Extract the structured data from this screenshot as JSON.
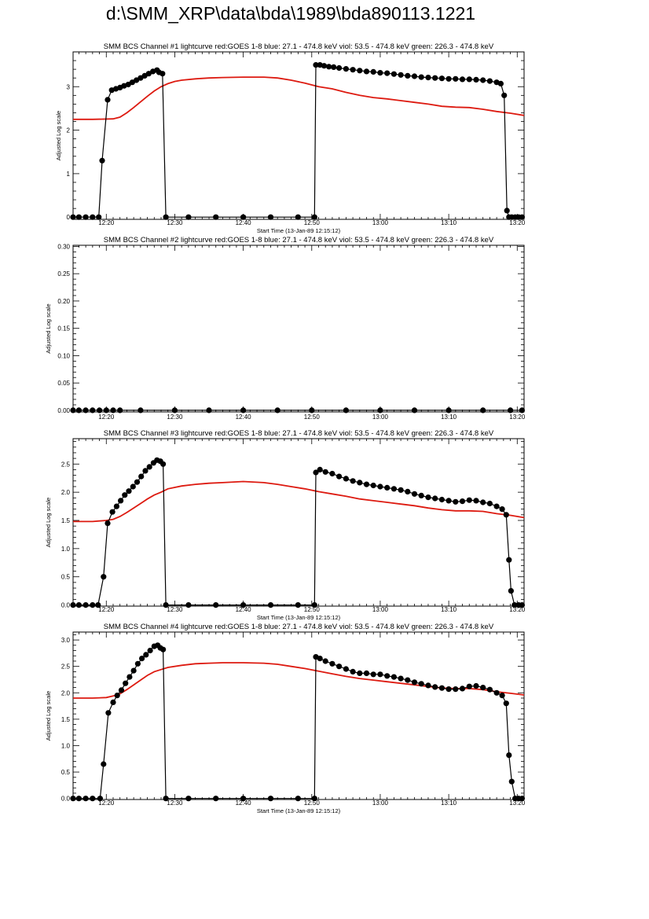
{
  "page_title": "d:\\SMM_XRP\\data\\bda\\1989\\bda890113.1221",
  "colors": {
    "goes": "#dd1a10",
    "bcs": "#000000",
    "axes": "#000000",
    "background": "#ffffff"
  },
  "chart_data": [
    {
      "type": "line",
      "title": "SMM BCS Channel #1 lightcurve  red:GOES 1-8  blue: 27.1 - 474.8 keV  viol: 53.5 - 474.8 keV  green: 226.3 - 474.8 keV",
      "xlabel": "Start Time (13-Jan-89 12:15:12)",
      "ylabel": "Adjusted Log scale",
      "x_ticks": [
        {
          "x": 5,
          "label": "12:20"
        },
        {
          "x": 15,
          "label": "12:30"
        },
        {
          "x": 25,
          "label": "12:40"
        },
        {
          "x": 35,
          "label": "12:50"
        },
        {
          "x": 45,
          "label": "13:00"
        },
        {
          "x": 55,
          "label": "13:10"
        },
        {
          "x": 65,
          "label": "13:20"
        }
      ],
      "y_ticks": [
        {
          "v": 0,
          "label": "0"
        },
        {
          "v": 1,
          "label": "1"
        },
        {
          "v": 2,
          "label": "2"
        },
        {
          "v": 3,
          "label": "3"
        }
      ],
      "xlim": [
        0.15,
        66.0
      ],
      "ylim": [
        -0.05,
        3.8
      ],
      "series": [
        {
          "name": "GOES 1-8",
          "color": "#dd1a10",
          "marker": "none",
          "x": [
            0.15,
            3,
            6,
            7,
            8,
            9,
            10,
            11,
            12,
            13,
            14,
            15,
            16,
            18,
            20,
            22,
            25,
            28,
            30,
            32,
            34,
            36,
            38,
            40,
            42,
            44,
            46,
            48,
            50,
            52,
            54,
            56,
            58,
            60,
            62,
            64,
            66
          ],
          "y": [
            2.25,
            2.25,
            2.26,
            2.3,
            2.4,
            2.52,
            2.65,
            2.78,
            2.9,
            3.0,
            3.07,
            3.12,
            3.15,
            3.18,
            3.2,
            3.21,
            3.22,
            3.22,
            3.2,
            3.15,
            3.08,
            3.0,
            2.95,
            2.87,
            2.8,
            2.75,
            2.72,
            2.68,
            2.64,
            2.6,
            2.55,
            2.53,
            2.52,
            2.48,
            2.43,
            2.39,
            2.34
          ]
        },
        {
          "name": "BCS",
          "color": "#000000",
          "marker": "circle",
          "x": [
            0.15,
            1,
            2,
            3,
            3.9,
            4.4,
            5.2,
            5.8,
            6.4,
            7.0,
            7.6,
            8.2,
            8.8,
            9.4,
            10.0,
            10.6,
            11.2,
            11.8,
            12.4,
            12.7,
            13.2,
            13.7,
            17,
            21,
            25,
            29,
            33,
            35.4,
            35.6,
            36.2,
            36.8,
            37.5,
            38.2,
            39,
            40,
            41,
            42,
            43,
            44,
            45,
            46,
            47,
            48,
            49,
            50,
            51,
            52,
            53,
            54,
            55,
            56,
            57,
            58,
            59,
            60,
            61,
            62,
            62.6,
            63.1,
            63.5,
            63.8,
            64.2,
            64.7,
            65.2,
            65.7
          ],
          "y": [
            0,
            0,
            0,
            0,
            0,
            1.3,
            2.7,
            2.92,
            2.95,
            2.98,
            3.02,
            3.05,
            3.1,
            3.15,
            3.2,
            3.25,
            3.3,
            3.35,
            3.38,
            3.33,
            3.3,
            0,
            0,
            0,
            0,
            0,
            0,
            0,
            3.5,
            3.5,
            3.48,
            3.46,
            3.45,
            3.43,
            3.41,
            3.39,
            3.37,
            3.35,
            3.34,
            3.32,
            3.31,
            3.29,
            3.27,
            3.25,
            3.24,
            3.22,
            3.21,
            3.2,
            3.19,
            3.18,
            3.18,
            3.17,
            3.17,
            3.16,
            3.15,
            3.13,
            3.1,
            3.07,
            2.8,
            0.15,
            0,
            0,
            0,
            0,
            0
          ]
        }
      ]
    },
    {
      "type": "line",
      "title": "SMM BCS Channel #2 lightcurve  red:GOES 1-8  blue: 27.1 - 474.8 keV  viol: 53.5 - 474.8 keV  green: 226.3 - 474.8 keV",
      "xlabel": "",
      "ylabel": "Adjusted Log scale",
      "x_ticks": [
        {
          "x": 5,
          "label": "12:20"
        },
        {
          "x": 15,
          "label": "12:30"
        },
        {
          "x": 25,
          "label": "12:40"
        },
        {
          "x": 35,
          "label": "12:50"
        },
        {
          "x": 45,
          "label": "13:00"
        },
        {
          "x": 55,
          "label": "13:10"
        },
        {
          "x": 65,
          "label": "13:20"
        }
      ],
      "y_ticks": [
        {
          "v": 0,
          "label": "0.00"
        },
        {
          "v": 0.05,
          "label": "0.05"
        },
        {
          "v": 0.1,
          "label": "0.10"
        },
        {
          "v": 0.15,
          "label": "0.15"
        },
        {
          "v": 0.2,
          "label": "0.20"
        },
        {
          "v": 0.25,
          "label": "0.25"
        },
        {
          "v": 0.3,
          "label": "0.30"
        }
      ],
      "xlim": [
        0.15,
        66.0
      ],
      "ylim": [
        -0.003,
        0.302
      ],
      "series": [
        {
          "name": "BCS",
          "color": "#000000",
          "marker": "circle",
          "x": [
            0.15,
            1,
            2,
            3,
            4,
            5,
            6,
            7,
            10,
            15,
            20,
            25,
            30,
            35,
            40,
            45,
            50,
            55,
            60,
            64,
            65.7
          ],
          "y": [
            0,
            0,
            0,
            0,
            0,
            0,
            0,
            0,
            0,
            0,
            0,
            0,
            0,
            0,
            0,
            0,
            0,
            0,
            0,
            0,
            0
          ]
        }
      ]
    },
    {
      "type": "line",
      "title": "SMM BCS Channel #3 lightcurve  red:GOES 1-8  blue: 27.1 - 474.8 keV  viol: 53.5 - 474.8 keV  green: 226.3 - 474.8 keV",
      "xlabel": "Start Time (13-Jan-89 12:15:12)",
      "ylabel": "Adjusted Log scale",
      "x_ticks": [
        {
          "x": 5,
          "label": "12:20"
        },
        {
          "x": 15,
          "label": "12:30"
        },
        {
          "x": 25,
          "label": "12:40"
        },
        {
          "x": 35,
          "label": "12:50"
        },
        {
          "x": 45,
          "label": "13:00"
        },
        {
          "x": 55,
          "label": "13:10"
        },
        {
          "x": 65,
          "label": "13:20"
        }
      ],
      "y_ticks": [
        {
          "v": 0,
          "label": "0.0"
        },
        {
          "v": 0.5,
          "label": "0.5"
        },
        {
          "v": 1.0,
          "label": "1.0"
        },
        {
          "v": 1.5,
          "label": "1.5"
        },
        {
          "v": 2.0,
          "label": "2.0"
        },
        {
          "v": 2.5,
          "label": "2.5"
        }
      ],
      "xlim": [
        0.15,
        66.0
      ],
      "ylim": [
        -0.02,
        2.95
      ],
      "series": [
        {
          "name": "GOES 1-8",
          "color": "#dd1a10",
          "marker": "none",
          "x": [
            0.15,
            3,
            5,
            6,
            7,
            8,
            9,
            10,
            11,
            12,
            13,
            14,
            16,
            18,
            20,
            22,
            25,
            28,
            30,
            32,
            34,
            36,
            38,
            40,
            42,
            44,
            46,
            48,
            50,
            52,
            54,
            56,
            58,
            60,
            62,
            64,
            66
          ],
          "y": [
            1.48,
            1.48,
            1.5,
            1.52,
            1.57,
            1.64,
            1.72,
            1.8,
            1.88,
            1.95,
            2.0,
            2.06,
            2.11,
            2.14,
            2.16,
            2.17,
            2.19,
            2.17,
            2.14,
            2.1,
            2.06,
            2.01,
            1.97,
            1.93,
            1.88,
            1.85,
            1.82,
            1.79,
            1.76,
            1.72,
            1.69,
            1.67,
            1.67,
            1.66,
            1.62,
            1.59,
            1.55
          ]
        },
        {
          "name": "BCS",
          "color": "#000000",
          "marker": "circle",
          "x": [
            0.15,
            1,
            2,
            3,
            3.8,
            4.6,
            5.2,
            5.9,
            6.5,
            7.1,
            7.7,
            8.3,
            8.9,
            9.5,
            10.1,
            10.7,
            11.3,
            11.9,
            12.4,
            12.9,
            13.3,
            13.7,
            17,
            21,
            25,
            29,
            33,
            35.4,
            35.6,
            36.2,
            37,
            38,
            39,
            40,
            41,
            42,
            43,
            44,
            45,
            46,
            47,
            48,
            49,
            50,
            51,
            52,
            53,
            54,
            55,
            56,
            57,
            58,
            59,
            60,
            61,
            62,
            62.8,
            63.4,
            63.8,
            64.1,
            64.6,
            65.2,
            65.7
          ],
          "y": [
            0,
            0,
            0,
            0,
            0,
            0.5,
            1.45,
            1.65,
            1.75,
            1.85,
            1.95,
            2.02,
            2.1,
            2.18,
            2.28,
            2.38,
            2.45,
            2.52,
            2.57,
            2.55,
            2.5,
            0,
            0,
            0,
            0,
            0,
            0,
            0,
            2.35,
            2.4,
            2.36,
            2.33,
            2.28,
            2.24,
            2.2,
            2.17,
            2.14,
            2.12,
            2.1,
            2.08,
            2.06,
            2.04,
            2.01,
            1.97,
            1.94,
            1.91,
            1.89,
            1.87,
            1.85,
            1.83,
            1.84,
            1.86,
            1.85,
            1.82,
            1.8,
            1.75,
            1.7,
            1.6,
            0.8,
            0.25,
            0,
            0,
            0
          ]
        }
      ]
    },
    {
      "type": "line",
      "title": "SMM BCS Channel #4 lightcurve  red:GOES 1-8  blue: 27.1 - 474.8 keV  viol: 53.5 - 474.8 keV  green: 226.3 - 474.8 keV",
      "xlabel": "Start Time (13-Jan-89 12:15:12)",
      "ylabel": "Adjusted Log scale",
      "x_ticks": [
        {
          "x": 5,
          "label": "12:20"
        },
        {
          "x": 15,
          "label": "12:30"
        },
        {
          "x": 25,
          "label": "12:40"
        },
        {
          "x": 35,
          "label": "12:50"
        },
        {
          "x": 45,
          "label": "13:00"
        },
        {
          "x": 55,
          "label": "13:10"
        },
        {
          "x": 65,
          "label": "13:20"
        }
      ],
      "y_ticks": [
        {
          "v": 0,
          "label": "0.0"
        },
        {
          "v": 0.5,
          "label": "0.5"
        },
        {
          "v": 1.0,
          "label": "1.0"
        },
        {
          "v": 1.5,
          "label": "1.5"
        },
        {
          "v": 2.0,
          "label": "2.0"
        },
        {
          "v": 2.5,
          "label": "2.5"
        },
        {
          "v": 3.0,
          "label": "3.0"
        }
      ],
      "xlim": [
        0.15,
        66.0
      ],
      "ylim": [
        -0.02,
        3.15
      ],
      "series": [
        {
          "name": "GOES 1-8",
          "color": "#dd1a10",
          "marker": "none",
          "x": [
            0.15,
            3,
            5,
            6,
            7,
            8,
            9,
            10,
            11,
            12,
            13,
            14,
            16,
            18,
            20,
            22,
            25,
            28,
            30,
            32,
            34,
            36,
            38,
            40,
            42,
            44,
            46,
            48,
            50,
            52,
            54,
            56,
            58,
            60,
            62,
            64,
            66
          ],
          "y": [
            1.9,
            1.9,
            1.91,
            1.94,
            1.98,
            2.06,
            2.15,
            2.24,
            2.33,
            2.4,
            2.44,
            2.48,
            2.52,
            2.55,
            2.56,
            2.57,
            2.57,
            2.56,
            2.54,
            2.5,
            2.46,
            2.41,
            2.36,
            2.31,
            2.27,
            2.24,
            2.21,
            2.18,
            2.15,
            2.12,
            2.09,
            2.08,
            2.08,
            2.06,
            2.02,
            1.99,
            1.96
          ]
        },
        {
          "name": "BCS",
          "color": "#000000",
          "marker": "circle",
          "x": [
            0.15,
            1,
            2,
            3,
            4.1,
            4.6,
            5.3,
            6.0,
            6.6,
            7.2,
            7.8,
            8.4,
            9.0,
            9.6,
            10.2,
            10.8,
            11.4,
            12.0,
            12.5,
            12.9,
            13.3,
            13.7,
            17,
            21,
            25,
            29,
            33,
            35.4,
            35.6,
            36.2,
            37,
            38,
            39,
            40,
            41,
            42,
            43,
            44,
            45,
            46,
            47,
            48,
            49,
            50,
            51,
            52,
            53,
            54,
            55,
            56,
            57,
            58,
            59,
            60,
            61,
            62,
            62.8,
            63.4,
            63.8,
            64.2,
            64.7,
            65.2,
            65.7
          ],
          "y": [
            0,
            0,
            0,
            0,
            0,
            0.65,
            1.62,
            1.82,
            1.95,
            2.05,
            2.18,
            2.3,
            2.42,
            2.55,
            2.65,
            2.72,
            2.8,
            2.88,
            2.9,
            2.85,
            2.82,
            0,
            0,
            0,
            0,
            0,
            0,
            0,
            2.68,
            2.65,
            2.6,
            2.55,
            2.5,
            2.45,
            2.4,
            2.37,
            2.37,
            2.35,
            2.35,
            2.32,
            2.3,
            2.27,
            2.24,
            2.2,
            2.17,
            2.14,
            2.11,
            2.09,
            2.07,
            2.07,
            2.08,
            2.12,
            2.13,
            2.1,
            2.06,
            2.0,
            1.95,
            1.8,
            0.82,
            0.32,
            0,
            0,
            0
          ]
        }
      ]
    }
  ]
}
